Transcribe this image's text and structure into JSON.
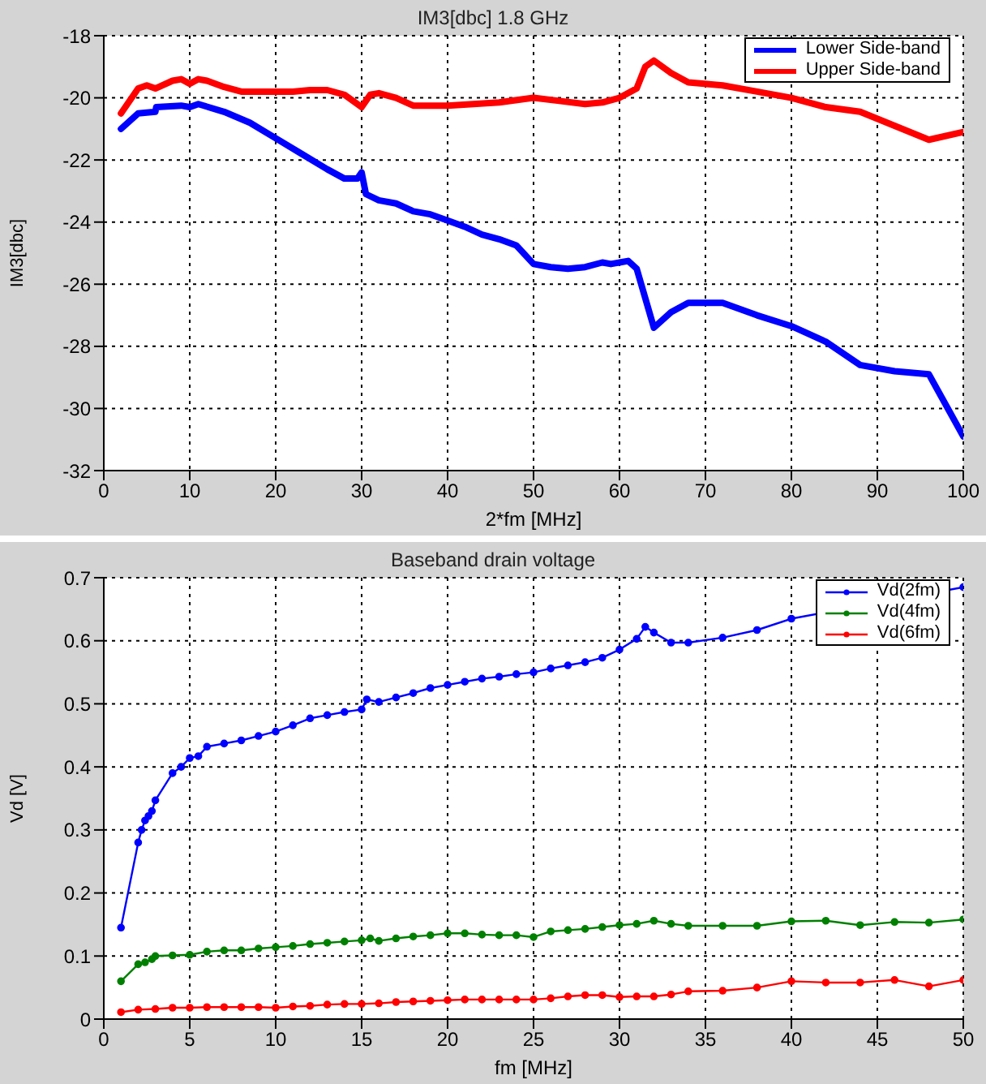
{
  "chart_data": [
    {
      "type": "line",
      "title": "IM3[dbc] 1.8 GHz",
      "xlabel": "2*fm [MHz]",
      "ylabel": "IM3[dbc]",
      "xlim": [
        0,
        100
      ],
      "xticks": [
        0,
        10,
        20,
        30,
        40,
        50,
        60,
        70,
        80,
        90,
        100
      ],
      "ylim": [
        -32,
        -18
      ],
      "yticks": [
        -32,
        -30,
        -28,
        -26,
        -24,
        -22,
        -20,
        -18
      ],
      "grid": true,
      "legend": "top right",
      "marker": "none",
      "line_style": "solid",
      "series": [
        {
          "name": "Lower Side-band",
          "color": "#0000ff",
          "x": [
            2,
            4,
            6,
            6.1,
            9,
            10,
            11,
            14,
            17,
            20,
            23,
            26,
            28,
            29.5,
            30,
            30.5,
            32,
            34,
            36,
            38,
            40,
            42,
            44,
            46,
            48,
            50,
            52,
            54,
            56,
            58,
            59,
            61,
            62,
            64,
            66,
            68,
            72,
            76,
            80,
            84,
            88,
            92,
            96,
            100
          ],
          "values": [
            -21.0,
            -20.5,
            -20.45,
            -20.3,
            -20.25,
            -20.3,
            -20.2,
            -20.45,
            -20.8,
            -21.3,
            -21.8,
            -22.3,
            -22.6,
            -22.6,
            -22.4,
            -23.1,
            -23.3,
            -23.4,
            -23.65,
            -23.75,
            -23.95,
            -24.15,
            -24.4,
            -24.55,
            -24.75,
            -25.35,
            -25.45,
            -25.5,
            -25.45,
            -25.3,
            -25.35,
            -25.25,
            -25.5,
            -27.4,
            -26.9,
            -26.6,
            -26.6,
            -27.0,
            -27.35,
            -27.85,
            -28.6,
            -28.8,
            -28.9,
            -30.9
          ]
        },
        {
          "name": "Upper Side-band",
          "color": "#ff0000",
          "x": [
            2,
            4,
            5,
            6,
            8,
            9,
            10,
            11,
            12,
            14,
            16,
            20,
            22,
            24,
            26,
            28,
            30,
            31,
            32,
            34,
            36,
            40,
            46,
            50,
            53,
            56,
            58,
            60,
            62,
            63,
            64,
            66,
            68,
            72,
            76,
            80,
            84,
            88,
            92,
            96,
            100
          ],
          "values": [
            -20.5,
            -19.7,
            -19.6,
            -19.7,
            -19.45,
            -19.4,
            -19.55,
            -19.4,
            -19.45,
            -19.65,
            -19.8,
            -19.8,
            -19.8,
            -19.75,
            -19.75,
            -19.9,
            -20.3,
            -19.9,
            -19.85,
            -20.0,
            -20.25,
            -20.25,
            -20.15,
            -20.0,
            -20.1,
            -20.2,
            -20.15,
            -20.0,
            -19.7,
            -19.0,
            -18.8,
            -19.2,
            -19.5,
            -19.6,
            -19.8,
            -20.0,
            -20.3,
            -20.45,
            -20.9,
            -21.35,
            -21.1
          ]
        }
      ]
    },
    {
      "type": "line",
      "title": "Baseband drain voltage",
      "xlabel": "fm [MHz]",
      "ylabel": "Vd [V]",
      "xlim": [
        0,
        50
      ],
      "xticks": [
        0,
        5,
        10,
        15,
        20,
        25,
        30,
        35,
        40,
        45,
        50
      ],
      "ylim": [
        0,
        0.7
      ],
      "yticks": [
        0,
        0.1,
        0.2,
        0.3,
        0.4,
        0.5,
        0.6,
        0.7
      ],
      "grid": true,
      "legend": "top right",
      "marker": "circle",
      "line_style": "solid",
      "series": [
        {
          "name": "Vd(2fm)",
          "color": "#0000ff",
          "x": [
            1,
            2,
            2.2,
            2.4,
            2.6,
            2.8,
            3,
            4,
            4.5,
            5,
            5.5,
            6,
            7,
            8,
            9,
            10,
            11,
            12,
            13,
            14,
            15,
            15.3,
            16,
            17,
            18,
            19,
            20,
            21,
            22,
            23,
            24,
            25,
            26,
            27,
            28,
            29,
            30,
            31,
            31.5,
            32,
            33,
            34,
            36,
            38,
            40,
            50
          ],
          "values": [
            0.145,
            0.28,
            0.3,
            0.315,
            0.322,
            0.33,
            0.347,
            0.39,
            0.4,
            0.414,
            0.417,
            0.432,
            0.437,
            0.442,
            0.449,
            0.456,
            0.466,
            0.477,
            0.482,
            0.487,
            0.491,
            0.507,
            0.503,
            0.51,
            0.517,
            0.525,
            0.53,
            0.535,
            0.54,
            0.543,
            0.547,
            0.55,
            0.556,
            0.561,
            0.566,
            0.573,
            0.586,
            0.603,
            0.622,
            0.613,
            0.597,
            0.597,
            0.605,
            0.617,
            0.635,
            0.685
          ]
        },
        {
          "name": "Vd(4fm)",
          "color": "#008000",
          "x": [
            1,
            2,
            2.4,
            2.8,
            3,
            4,
            5,
            6,
            7,
            8,
            9,
            10,
            11,
            12,
            13,
            14,
            15,
            15.5,
            16,
            17,
            18,
            19,
            20,
            21,
            22,
            23,
            24,
            25,
            26,
            27,
            28,
            29,
            30,
            31,
            32,
            33,
            34,
            36,
            38,
            40,
            42,
            44,
            46,
            48,
            50
          ],
          "values": [
            0.06,
            0.087,
            0.09,
            0.095,
            0.1,
            0.101,
            0.102,
            0.107,
            0.109,
            0.109,
            0.112,
            0.114,
            0.116,
            0.119,
            0.121,
            0.123,
            0.125,
            0.128,
            0.124,
            0.128,
            0.131,
            0.133,
            0.136,
            0.136,
            0.134,
            0.133,
            0.133,
            0.13,
            0.139,
            0.141,
            0.143,
            0.146,
            0.149,
            0.151,
            0.156,
            0.151,
            0.148,
            0.148,
            0.148,
            0.155,
            0.156,
            0.149,
            0.154,
            0.153,
            0.158
          ]
        },
        {
          "name": "Vd(6fm)",
          "color": "#ff0000",
          "x": [
            1,
            2,
            3,
            4,
            5,
            6,
            7,
            8,
            9,
            10,
            11,
            12,
            13,
            14,
            15,
            16,
            17,
            18,
            19,
            20,
            21,
            22,
            23,
            24,
            25,
            26,
            27,
            28,
            29,
            30,
            31,
            32,
            33,
            34,
            36,
            38,
            40,
            42,
            44,
            46,
            48,
            50
          ],
          "values": [
            0.011,
            0.015,
            0.016,
            0.018,
            0.018,
            0.019,
            0.019,
            0.019,
            0.019,
            0.018,
            0.02,
            0.021,
            0.023,
            0.024,
            0.024,
            0.025,
            0.027,
            0.028,
            0.029,
            0.03,
            0.031,
            0.031,
            0.031,
            0.031,
            0.031,
            0.033,
            0.036,
            0.038,
            0.038,
            0.035,
            0.036,
            0.036,
            0.039,
            0.044,
            0.045,
            0.05,
            0.06,
            0.058,
            0.058,
            0.062,
            0.052,
            0.062
          ]
        }
      ]
    }
  ]
}
